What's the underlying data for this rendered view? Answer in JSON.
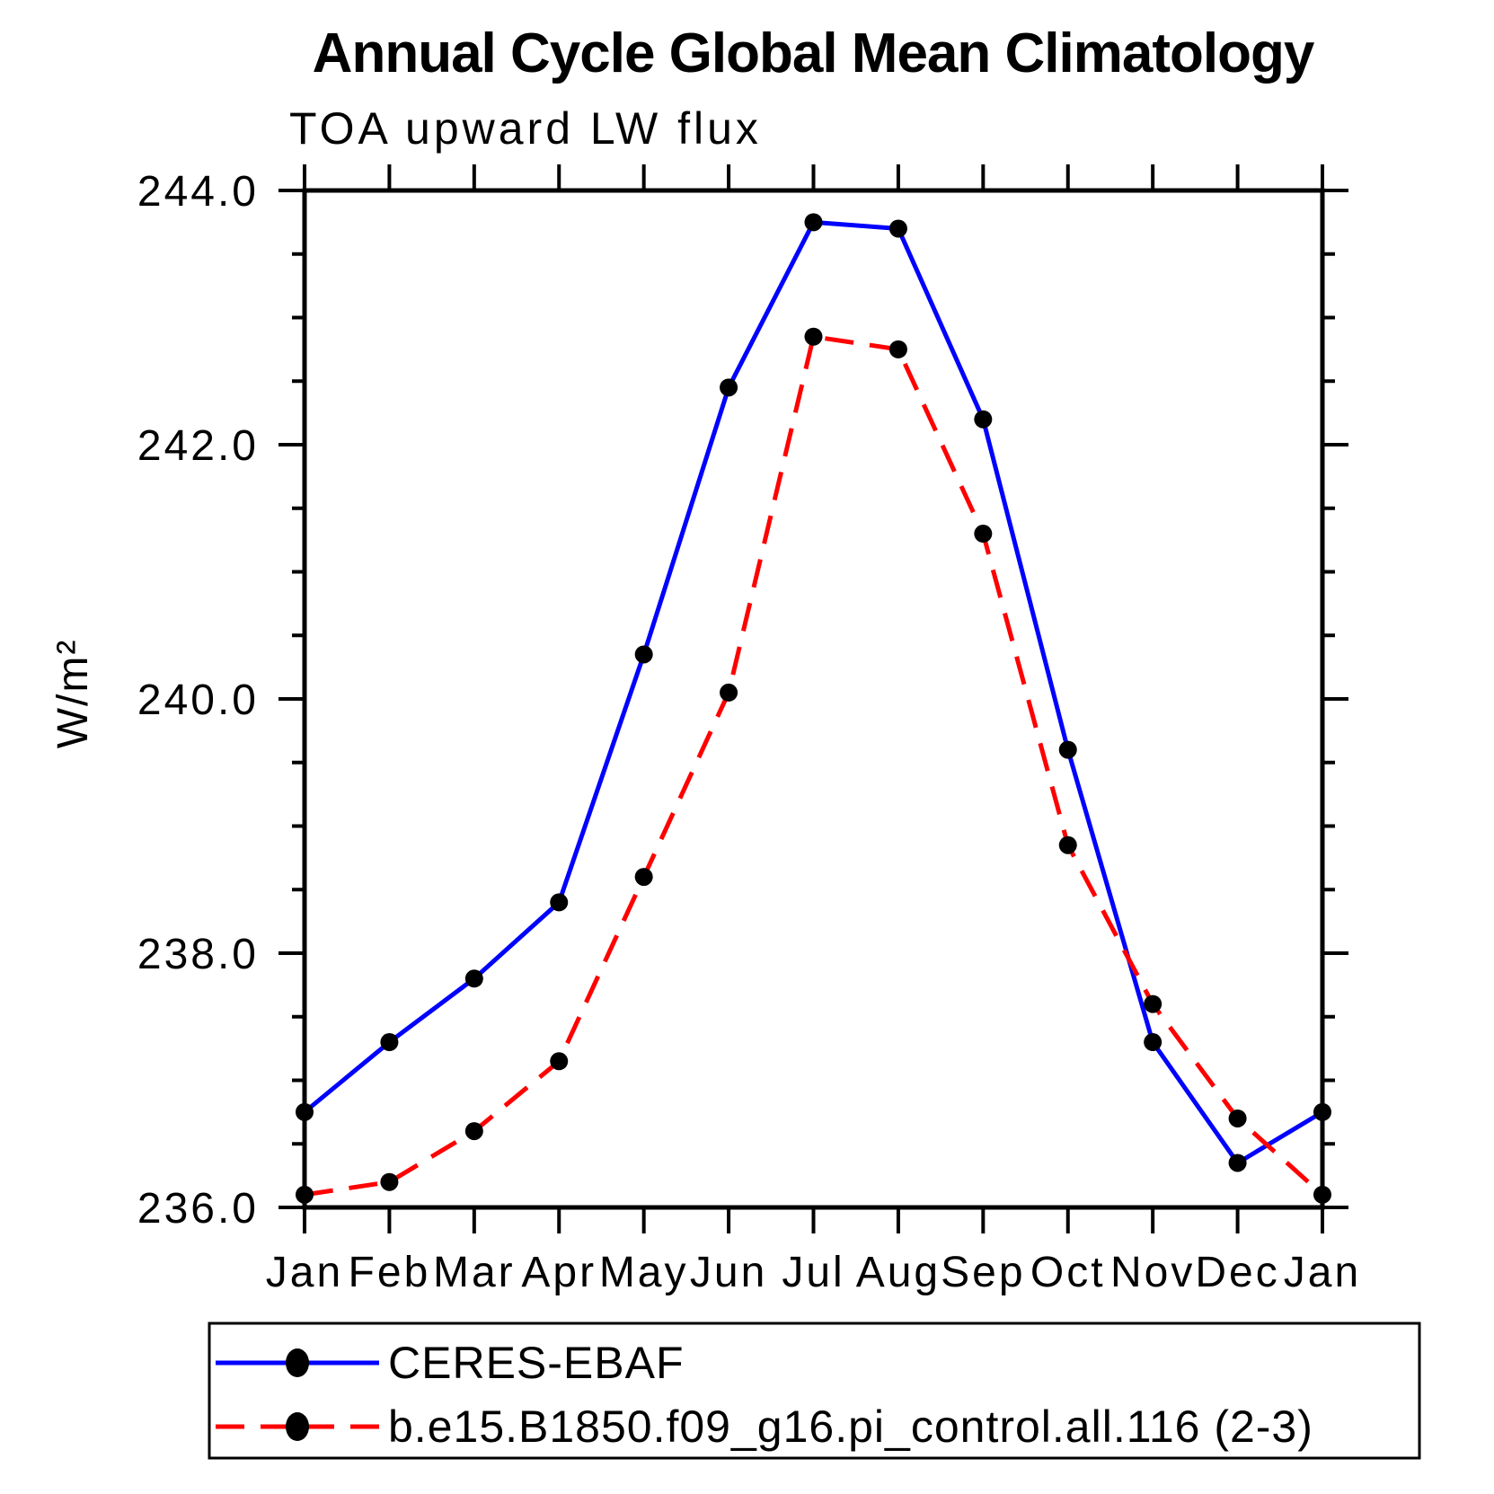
{
  "chart_data": {
    "type": "line",
    "title": "Annual Cycle Global Mean Climatology",
    "subtitle": "TOA upward LW flux",
    "ylabel": "W/m²",
    "xlabel": "",
    "categories": [
      "Jan",
      "Feb",
      "Mar",
      "Apr",
      "May",
      "Jun",
      "Jul",
      "Aug",
      "Sep",
      "Oct",
      "Nov",
      "Dec",
      "Jan"
    ],
    "ylim": [
      236.0,
      244.0
    ],
    "ytick_major_values": [
      236.0,
      238.0,
      240.0,
      242.0,
      244.0
    ],
    "ytick_major_labels": [
      "236.0",
      "238.0",
      "240.0",
      "242.0",
      "244.0"
    ],
    "ytick_minor_step": 0.5,
    "grid": "off",
    "legend_position": "bottom",
    "frame_color": "#000000",
    "marker_color": "#000000",
    "series": [
      {
        "name": "CERES-EBAF",
        "color": "#0000ff",
        "line_style": "solid",
        "values": [
          236.75,
          237.3,
          237.8,
          238.4,
          240.35,
          242.45,
          243.75,
          243.7,
          242.2,
          239.6,
          237.3,
          236.35,
          236.75
        ]
      },
      {
        "name": "b.e15.B1850.f09_g16.pi_control.all.116 (2-3)",
        "color": "#ff0000",
        "line_style": "dashed",
        "values": [
          236.1,
          236.2,
          236.6,
          237.15,
          238.6,
          240.05,
          242.85,
          242.75,
          241.3,
          238.85,
          237.6,
          236.7,
          236.1
        ]
      }
    ]
  }
}
